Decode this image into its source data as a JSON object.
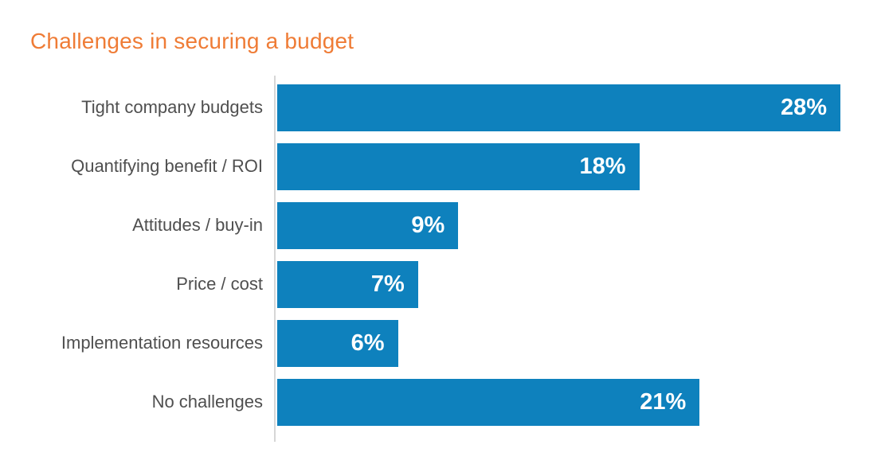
{
  "title": {
    "text": "Challenges in securing a budget",
    "color": "#ef7c36"
  },
  "chart_data": {
    "type": "bar",
    "orientation": "horizontal",
    "title": "Challenges in securing a budget",
    "categories": [
      "Tight company budgets",
      "Quantifying benefit / ROI",
      "Attitudes / buy-in",
      "Price / cost",
      "Implementation resources",
      "No challenges"
    ],
    "values": [
      28,
      18,
      9,
      7,
      6,
      21
    ],
    "value_labels": [
      "28%",
      "18%",
      "9%",
      "7%",
      "6%",
      "21%"
    ],
    "xlabel": "",
    "ylabel": "",
    "xlim": [
      0,
      28
    ],
    "grid": false,
    "legend": false,
    "value_label_position": "inside-right",
    "colors": {
      "bar": "#0e81bd",
      "title": "#ef7c36",
      "category_label": "#4f4f4f",
      "value_label": "#ffffff",
      "axis_line": "#d6d6d6",
      "background": "#ffffff"
    }
  }
}
